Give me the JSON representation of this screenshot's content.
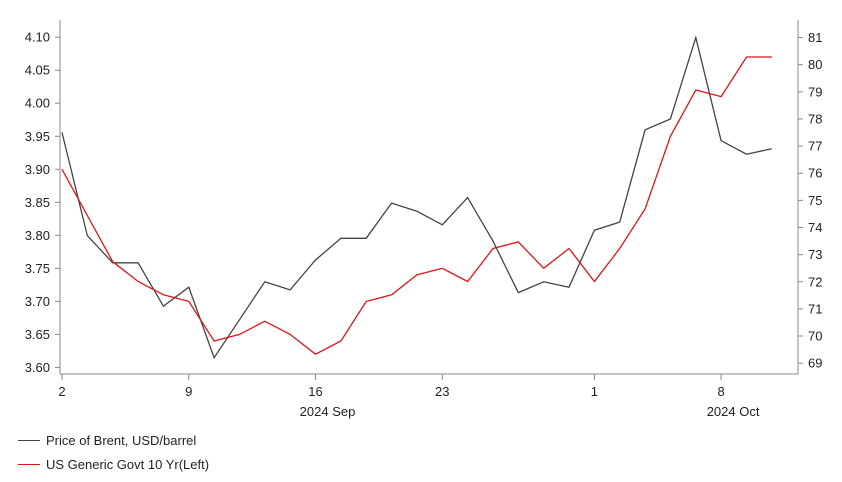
{
  "chart_data": {
    "type": "line",
    "title": "",
    "x": [
      "2024-09-02",
      "2024-09-03",
      "2024-09-04",
      "2024-09-05",
      "2024-09-06",
      "2024-09-09",
      "2024-09-10",
      "2024-09-11",
      "2024-09-12",
      "2024-09-13",
      "2024-09-16",
      "2024-09-17",
      "2024-09-18",
      "2024-09-19",
      "2024-09-20",
      "2024-09-23",
      "2024-09-24",
      "2024-09-25",
      "2024-09-26",
      "2024-09-27",
      "2024-09-30",
      "2024-10-01",
      "2024-10-02",
      "2024-10-03",
      "2024-10-04",
      "2024-10-07",
      "2024-10-08",
      "2024-10-09",
      "2024-10-10",
      "2024-10-11"
    ],
    "x_ticks": [
      {
        "date": "2024-09-02",
        "label": "2"
      },
      {
        "date": "2024-09-09",
        "label": "9"
      },
      {
        "date": "2024-09-16",
        "label": "16"
      },
      {
        "date": "2024-09-23",
        "label": "23"
      },
      {
        "date": "2024-10-01",
        "label": "1"
      },
      {
        "date": "2024-10-08",
        "label": "8"
      }
    ],
    "month_labels": [
      {
        "date": "2024-09-16",
        "label": "2024 Sep"
      },
      {
        "date": "2024-10-08",
        "label": "2024 Oct"
      }
    ],
    "left_axis": {
      "ylim": [
        3.59,
        4.12
      ],
      "ticks": [
        "3.60",
        "3.65",
        "3.70",
        "3.75",
        "3.80",
        "3.85",
        "3.90",
        "3.95",
        "4.00",
        "4.05",
        "4.10"
      ]
    },
    "right_axis": {
      "ylim": [
        68.6,
        81.5
      ],
      "ticks": [
        "69",
        "70",
        "71",
        "72",
        "73",
        "74",
        "75",
        "76",
        "77",
        "78",
        "79",
        "80",
        "81"
      ]
    },
    "series": [
      {
        "name": "Price of Brent, USD/barrel",
        "axis": "right",
        "color": "#444444",
        "values": [
          77.5,
          73.7,
          72.7,
          72.7,
          71.1,
          71.8,
          69.2,
          70.6,
          72.0,
          71.7,
          72.8,
          73.6,
          73.6,
          74.9,
          74.6,
          74.1,
          75.1,
          73.5,
          71.6,
          72.0,
          71.8,
          73.9,
          74.2,
          77.6,
          78.0,
          81.0,
          77.2,
          76.7,
          76.9,
          null
        ],
        "dates_note": ""
      },
      {
        "name": "US Generic Govt 10 Yr(Left)",
        "axis": "left",
        "color": "#e0141a",
        "values": [
          3.9,
          3.83,
          3.76,
          3.73,
          3.71,
          3.7,
          3.64,
          3.65,
          3.67,
          3.65,
          3.62,
          3.64,
          3.7,
          3.71,
          3.74,
          3.75,
          3.73,
          3.78,
          3.79,
          3.75,
          3.78,
          3.73,
          3.78,
          3.84,
          3.95,
          4.02,
          4.01,
          4.07,
          4.07,
          null
        ]
      }
    ],
    "legend": {
      "position": "bottom-left",
      "items": [
        {
          "label": "Price of Brent, USD/barrel",
          "color": "#444444"
        },
        {
          "label": "US Generic Govt 10 Yr(Left)",
          "color": "#e0141a"
        }
      ]
    },
    "grid": false
  }
}
